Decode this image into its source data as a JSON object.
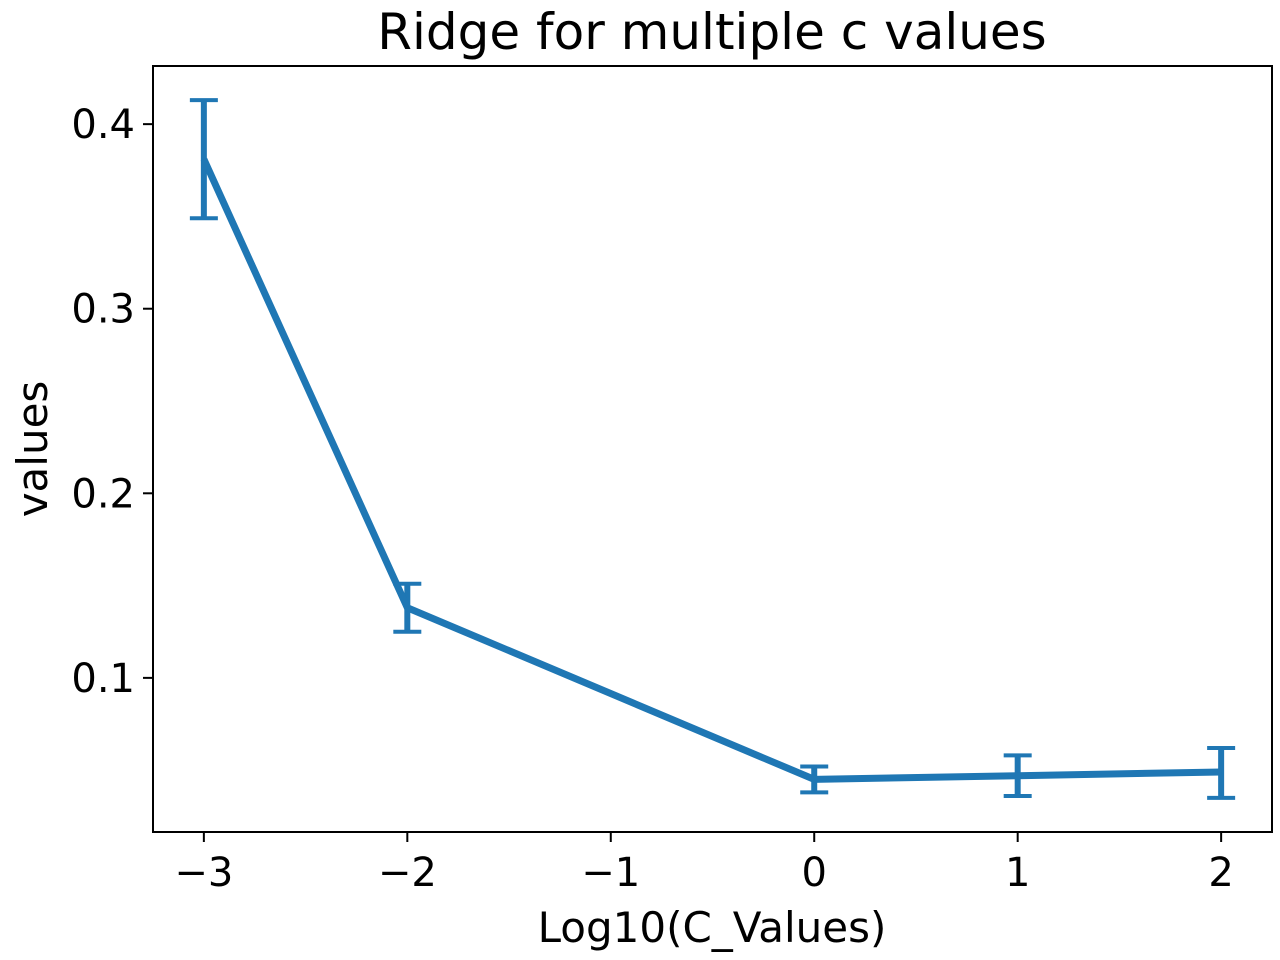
{
  "chart_data": {
    "type": "line",
    "title": "Ridge for multiple c values",
    "xlabel": "Log10(C_Values)",
    "ylabel": "values",
    "x": [
      -3,
      -2,
      0,
      1,
      2
    ],
    "series": [
      {
        "name": "",
        "color": "#1f77b4",
        "values": [
          0.381,
          0.138,
          0.045,
          0.047,
          0.049
        ],
        "error_low": [
          0.349,
          0.125,
          0.038,
          0.036,
          0.035
        ],
        "error_high": [
          0.413,
          0.151,
          0.052,
          0.058,
          0.062
        ]
      }
    ],
    "xlim": [
      -3.25,
      2.25
    ],
    "ylim": [
      0.0165,
      0.4315
    ],
    "x_ticks": [
      -3,
      -2,
      -1,
      0,
      1,
      2
    ],
    "x_tick_labels": [
      "−3",
      "−2",
      "−1",
      "0",
      "1",
      "2"
    ],
    "y_ticks": [
      0.1,
      0.2,
      0.3,
      0.4
    ],
    "y_tick_labels": [
      "0.1",
      "0.2",
      "0.3",
      "0.4"
    ],
    "grid": false,
    "legend": "none"
  }
}
